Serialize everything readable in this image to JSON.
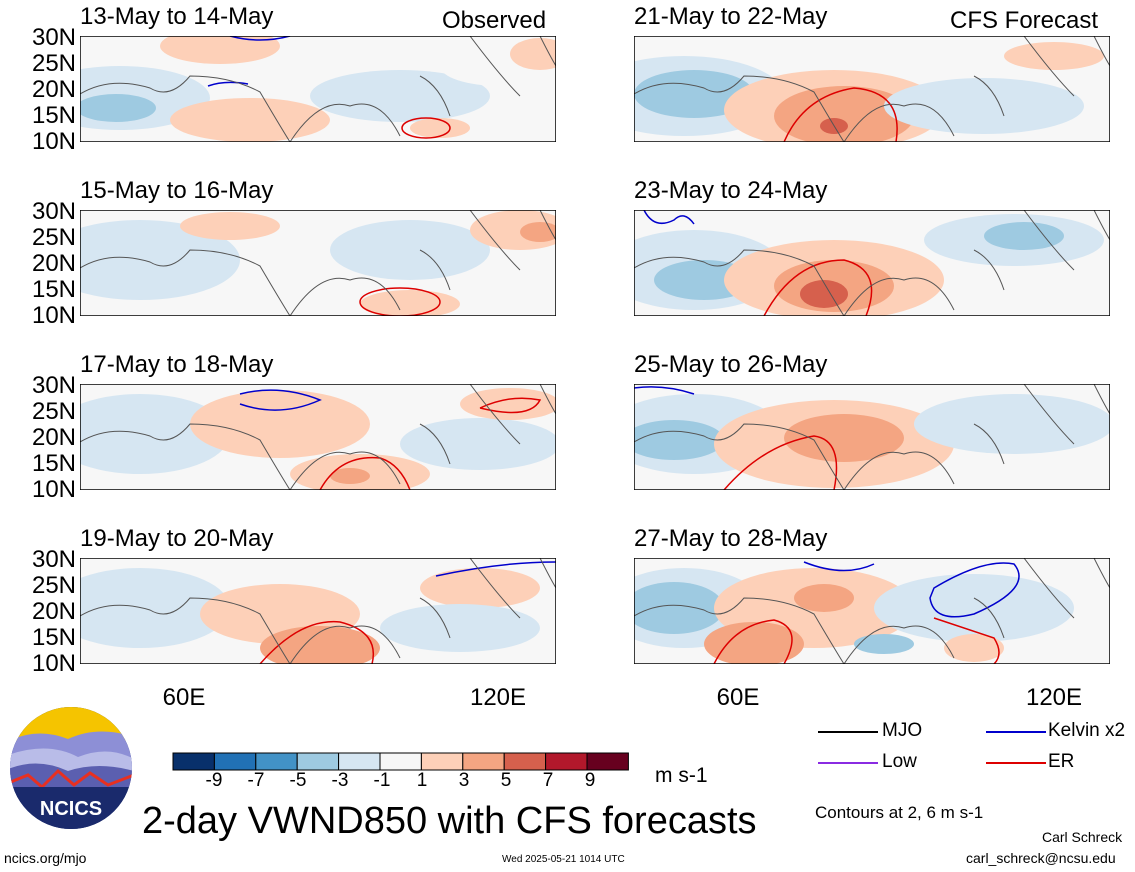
{
  "panels": [
    {
      "title": "13-May to 14-May",
      "tag": "Observed"
    },
    {
      "title": "21-May to 22-May",
      "tag": "CFS Forecast"
    },
    {
      "title": "15-May to 16-May",
      "tag": ""
    },
    {
      "title": "23-May to 24-May",
      "tag": ""
    },
    {
      "title": "17-May to 18-May",
      "tag": ""
    },
    {
      "title": "25-May to 26-May",
      "tag": ""
    },
    {
      "title": "19-May to 20-May",
      "tag": ""
    },
    {
      "title": "27-May to 28-May",
      "tag": ""
    }
  ],
  "lat_labels": [
    "30N",
    "25N",
    "20N",
    "15N",
    "10N"
  ],
  "lon_labels": [
    "60E",
    "120E"
  ],
  "colorbar": {
    "labels": [
      "-9",
      "-7",
      "-5",
      "-3",
      "-1",
      "1",
      "3",
      "5",
      "7",
      "9"
    ],
    "colors": [
      "#08306b",
      "#2171b5",
      "#4292c6",
      "#9ecae1",
      "#d6e6f2",
      "#f7f7f7",
      "#fdd0b8",
      "#f4a582",
      "#d6604d",
      "#b2182b",
      "#67001f"
    ],
    "units": "m s-1"
  },
  "legend": {
    "items": [
      {
        "label": "MJO",
        "color": "#000000"
      },
      {
        "label": "Kelvin x2",
        "color": "#0000cc"
      },
      {
        "label": "Low",
        "color": "#8a2be2"
      },
      {
        "label": "ER",
        "color": "#dd0000"
      }
    ],
    "contours_note": "Contours at 2, 6 m s-1"
  },
  "title": "2-day VWND850 with CFS forecasts",
  "logo_text": "NCICS",
  "footer": {
    "url": "ncics.org/mjo",
    "timestamp": "Wed 2025-05-21 1014 UTC",
    "author": "Carl Schreck",
    "email": "carl_schreck@ncsu.edu"
  },
  "map_region": {
    "lon_range": [
      40,
      130
    ],
    "lat_range": [
      10,
      30
    ]
  }
}
